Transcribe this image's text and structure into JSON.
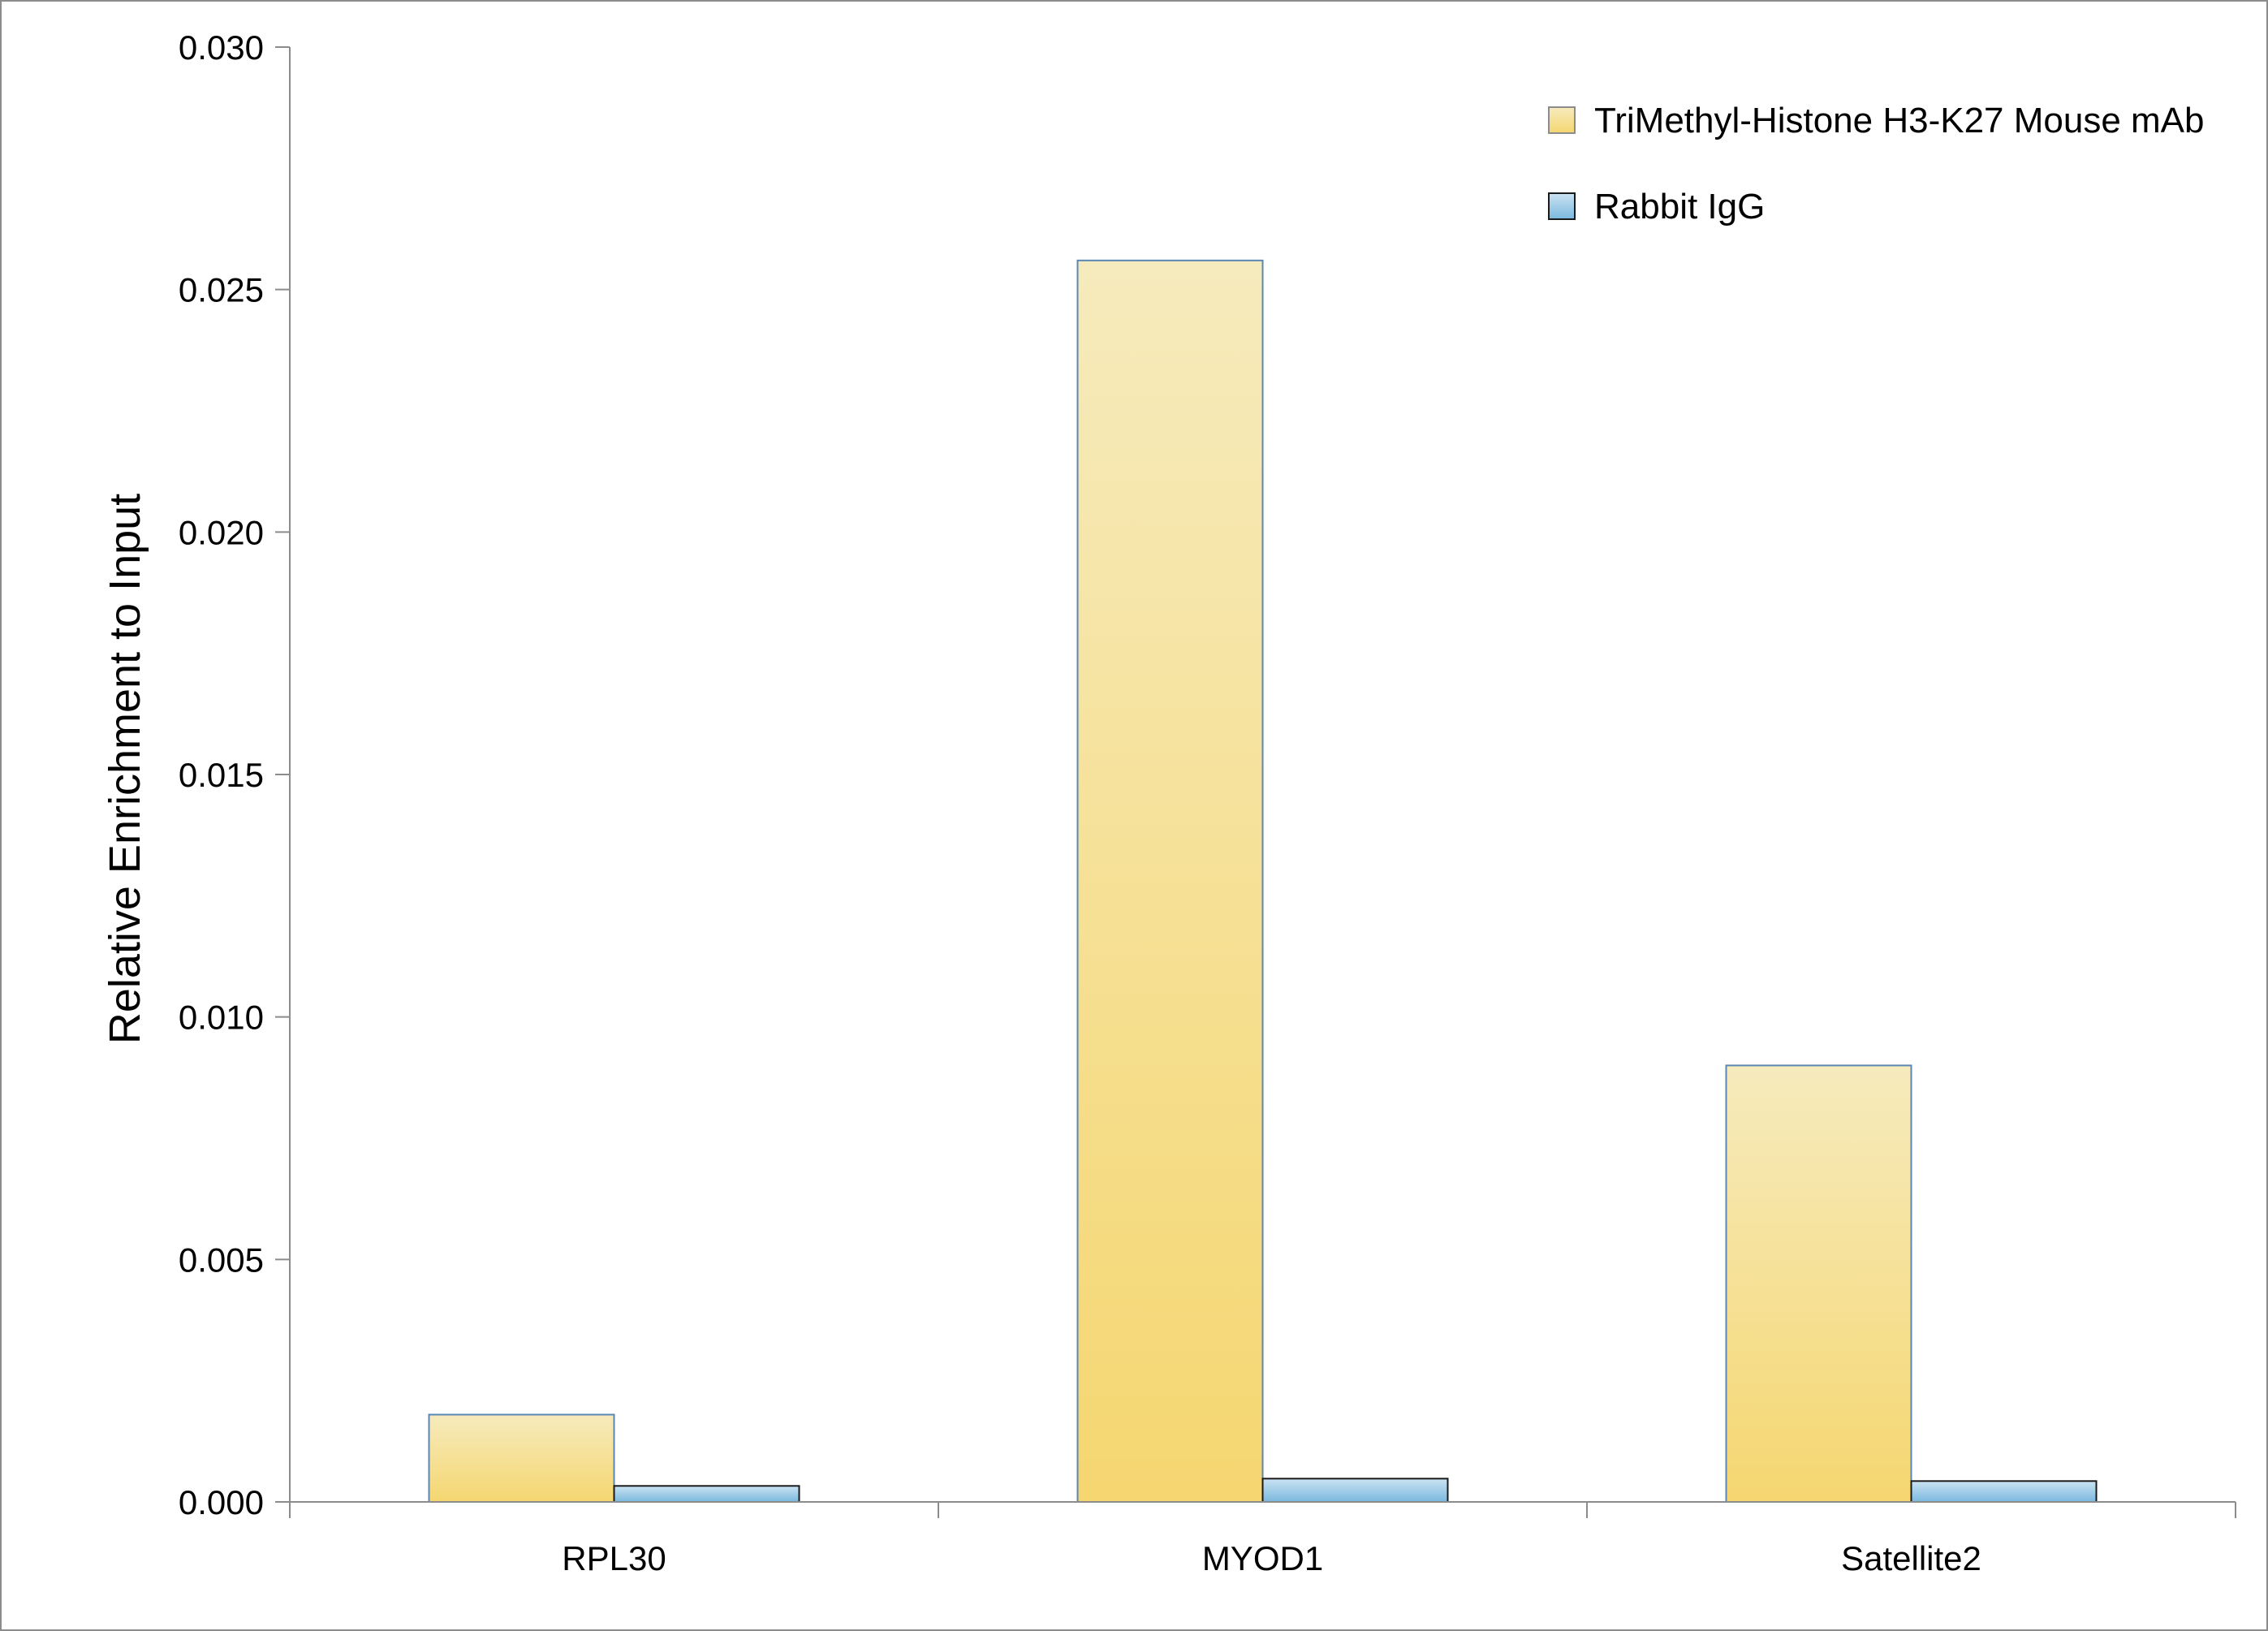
{
  "chart_data": {
    "type": "bar",
    "title": "",
    "xlabel": "",
    "ylabel": "Relative Enrichment to Input",
    "ylim": [
      0,
      0.03
    ],
    "yticks": [
      "0.000",
      "0.005",
      "0.010",
      "0.015",
      "0.020",
      "0.025",
      "0.030"
    ],
    "categories": [
      "RPL30",
      "MYOD1",
      "Satellite2"
    ],
    "series": [
      {
        "name": "TriMethyl-Histone H3-K27 Mouse mAb",
        "values": [
          0.0018,
          0.0256,
          0.009
        ],
        "color_top": "#f6ebbd",
        "color_bottom": "#f5d670",
        "stroke": "#5b87b5"
      },
      {
        "name": "Rabbit IgG",
        "values": [
          0.00033,
          0.00048,
          0.00043
        ],
        "color_top": "#cbe3f2",
        "color_bottom": "#7ab8de",
        "stroke": "#1a1a1a"
      }
    ],
    "legend_position": "top-right",
    "grid": false
  }
}
